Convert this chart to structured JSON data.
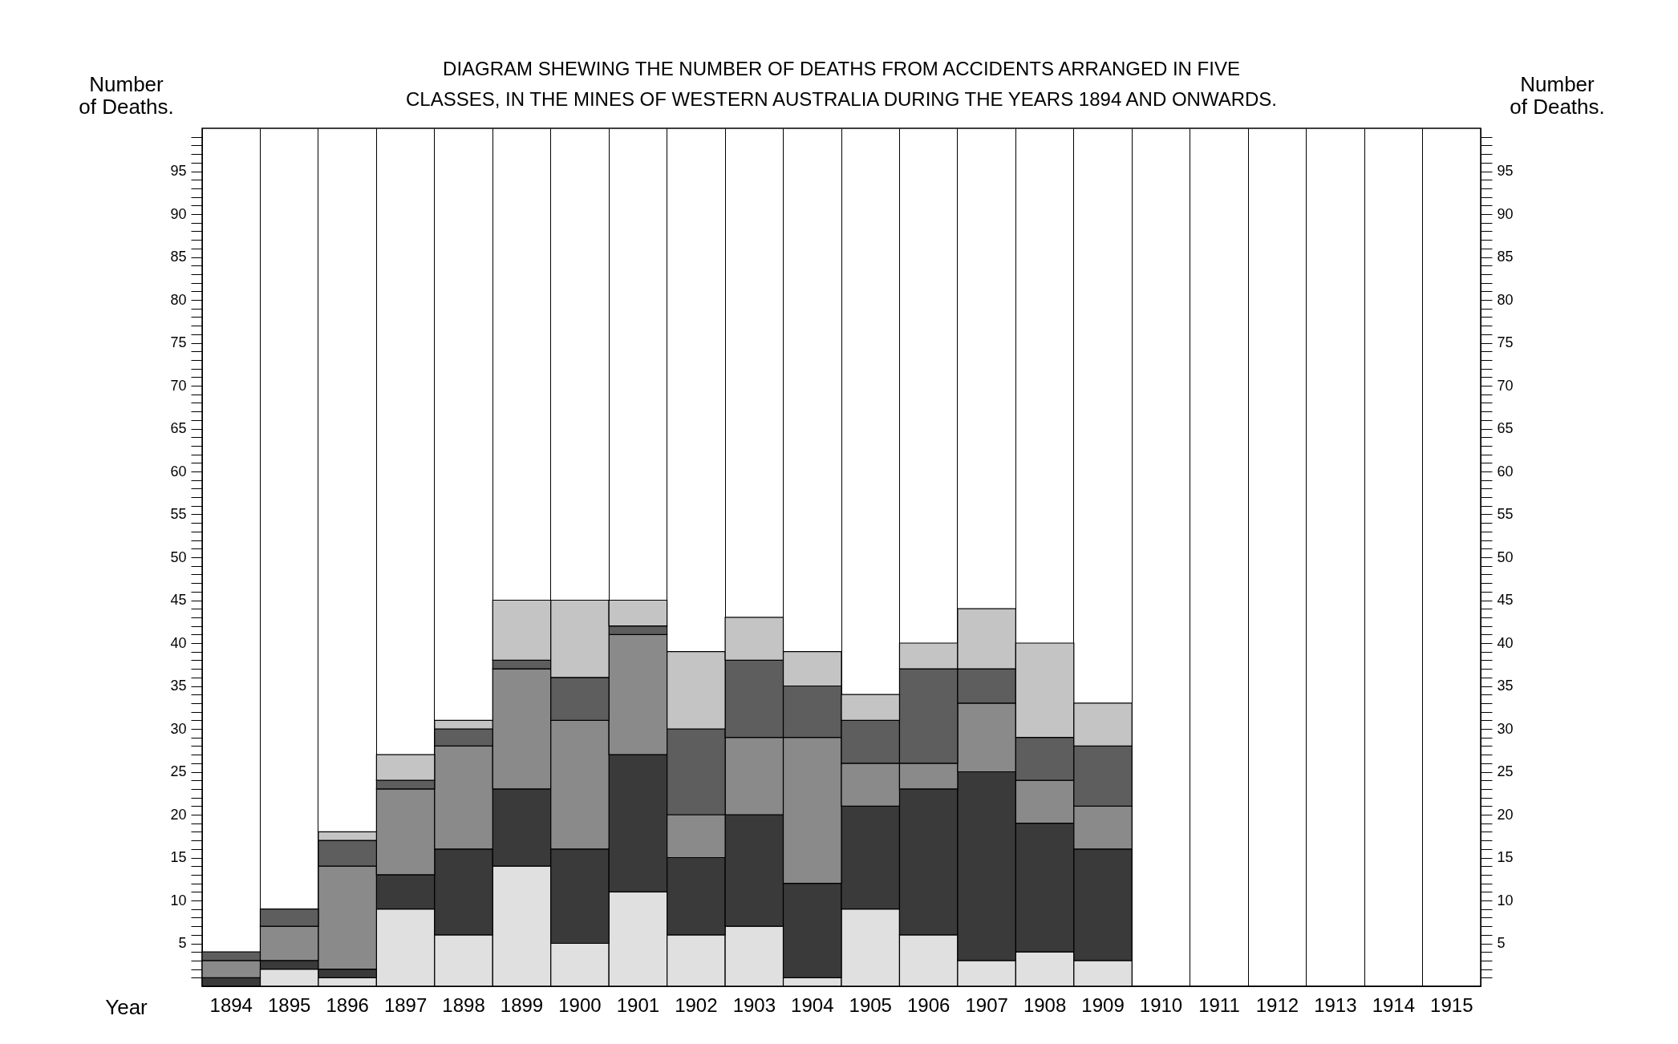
{
  "chart_data": {
    "type": "bar",
    "title": "DIAGRAM SHEWING THE NUMBER OF DEATHS FROM ACCIDENTS ARRANGED IN FIVE CLASSES, IN THE MINES OF WESTERN AUSTRALIA DURING THE YEARS 1894 AND ONWARDS.",
    "xlabel": "Year",
    "ylabel": "Number of Deaths.",
    "y2label": "Number of Deaths.",
    "stacked": true,
    "grid": "x",
    "categories": [
      "1894",
      "1895",
      "1896",
      "1897",
      "1898",
      "1899",
      "1900",
      "1901",
      "1902",
      "1903",
      "1904",
      "1905",
      "1906",
      "1907",
      "1908",
      "1909",
      "1910",
      "1911",
      "1912",
      "1913",
      "1914",
      "1915"
    ],
    "series": [
      {
        "color": "#e0e0e0",
        "values": [
          0,
          2,
          1,
          9,
          6,
          14,
          5,
          11,
          6,
          7,
          1,
          9,
          6,
          3,
          4,
          3,
          null,
          null,
          null,
          null,
          null,
          null
        ]
      },
      {
        "color": "#3a3a3a",
        "values": [
          1,
          1,
          1,
          4,
          10,
          9,
          11,
          16,
          9,
          13,
          11,
          12,
          17,
          22,
          15,
          13,
          null,
          null,
          null,
          null,
          null,
          null
        ]
      },
      {
        "color": "#8a8a8a",
        "values": [
          2,
          4,
          12,
          10,
          12,
          14,
          15,
          14,
          5,
          9,
          17,
          5,
          3,
          8,
          5,
          5,
          null,
          null,
          null,
          null,
          null,
          null
        ]
      },
      {
        "color": "#5e5e5e",
        "values": [
          1,
          2,
          3,
          1,
          2,
          1,
          5,
          1,
          10,
          9,
          6,
          5,
          11,
          4,
          5,
          7,
          null,
          null,
          null,
          null,
          null,
          null
        ]
      },
      {
        "color": "#c4c4c4",
        "values": [
          0,
          0,
          1,
          3,
          1,
          7,
          9,
          3,
          9,
          5,
          4,
          3,
          3,
          7,
          11,
          5,
          null,
          null,
          null,
          null,
          null,
          null
        ]
      }
    ],
    "ylim": [
      0,
      100
    ],
    "yticks": [
      {
        "value": 1,
        "label": null
      },
      {
        "value": 2,
        "label": null
      },
      {
        "value": 3,
        "label": null
      },
      {
        "value": 4,
        "label": null
      },
      5,
      {
        "value": 6,
        "label": null
      },
      {
        "value": 7,
        "label": null
      },
      {
        "value": 8,
        "label": null
      },
      {
        "value": 9,
        "label": null
      },
      10,
      {
        "value": 11,
        "label": null
      },
      {
        "value": 12,
        "label": null
      },
      {
        "value": 13,
        "label": null
      },
      {
        "value": 14,
        "label": null
      },
      15,
      {
        "value": 16,
        "label": null
      },
      {
        "value": 17,
        "label": null
      },
      {
        "value": 18,
        "label": null
      },
      {
        "value": 19,
        "label": null
      },
      20,
      {
        "value": 21,
        "label": null
      },
      {
        "value": 22,
        "label": null
      },
      {
        "value": 23,
        "label": null
      },
      {
        "value": 24,
        "label": null
      },
      25,
      {
        "value": 26,
        "label": null
      },
      {
        "value": 27,
        "label": null
      },
      {
        "value": 28,
        "label": null
      },
      {
        "value": 29,
        "label": null
      },
      30,
      {
        "value": 31,
        "label": null
      },
      {
        "value": 32,
        "label": null
      },
      {
        "value": 33,
        "label": null
      },
      {
        "value": 34,
        "label": null
      },
      35,
      {
        "value": 36,
        "label": null
      },
      {
        "value": 37,
        "label": null
      },
      {
        "value": 38,
        "label": null
      },
      {
        "value": 39,
        "label": null
      },
      40,
      {
        "value": 41,
        "label": null
      },
      {
        "value": 42,
        "label": null
      },
      {
        "value": 43,
        "label": null
      },
      {
        "value": 44,
        "label": null
      },
      45,
      {
        "value": 46,
        "label": null
      },
      {
        "value": 47,
        "label": null
      },
      {
        "value": 48,
        "label": null
      },
      {
        "value": 49,
        "label": null
      },
      50,
      {
        "value": 51,
        "label": null
      },
      {
        "value": 52,
        "label": null
      },
      {
        "value": 53,
        "label": null
      },
      {
        "value": 54,
        "label": null
      },
      55,
      {
        "value": 56,
        "label": null
      },
      {
        "value": 57,
        "label": null
      },
      {
        "value": 58,
        "label": null
      },
      {
        "value": 59,
        "label": null
      },
      60,
      {
        "value": 61,
        "label": null
      },
      {
        "value": 62,
        "label": null
      },
      {
        "value": 63,
        "label": null
      },
      {
        "value": 64,
        "label": null
      },
      65,
      {
        "value": 66,
        "label": null
      },
      {
        "value": 67,
        "label": null
      },
      {
        "value": 68,
        "label": null
      },
      {
        "value": 69,
        "label": null
      },
      70,
      {
        "value": 71,
        "label": null
      },
      {
        "value": 72,
        "label": null
      },
      {
        "value": 73,
        "label": null
      },
      {
        "value": 74,
        "label": null
      },
      75,
      {
        "value": 76,
        "label": null
      },
      {
        "value": 77,
        "label": null
      },
      {
        "value": 78,
        "label": null
      },
      {
        "value": 79,
        "label": null
      },
      80,
      {
        "value": 81,
        "label": null
      },
      {
        "value": 82,
        "label": null
      },
      {
        "value": 83,
        "label": null
      },
      {
        "value": 84,
        "label": null
      },
      85,
      {
        "value": 86,
        "label": null
      },
      {
        "value": 87,
        "label": null
      },
      {
        "value": 88,
        "label": null
      },
      {
        "value": 89,
        "label": null
      },
      90,
      {
        "value": 91,
        "label": null
      },
      {
        "value": 92,
        "label": null
      },
      {
        "value": 93,
        "label": null
      },
      {
        "value": 94,
        "label": null
      },
      95,
      {
        "value": 96,
        "label": null
      },
      {
        "value": 97,
        "label": null
      },
      {
        "value": 98,
        "label": null
      },
      {
        "value": 99,
        "label": null
      }
    ],
    "y2lim": [
      0,
      100
    ],
    "y2ticks": [
      {
        "value": 1,
        "label": null
      },
      {
        "value": 2,
        "label": null
      },
      {
        "value": 3,
        "label": null
      },
      {
        "value": 4,
        "label": null
      },
      5,
      {
        "value": 6,
        "label": null
      },
      {
        "value": 7,
        "label": null
      },
      {
        "value": 8,
        "label": null
      },
      {
        "value": 9,
        "label": null
      },
      10,
      {
        "value": 11,
        "label": null
      },
      {
        "value": 12,
        "label": null
      },
      {
        "value": 13,
        "label": null
      },
      {
        "value": 14,
        "label": null
      },
      15,
      {
        "value": 16,
        "label": null
      },
      {
        "value": 17,
        "label": null
      },
      {
        "value": 18,
        "label": null
      },
      {
        "value": 19,
        "label": null
      },
      20,
      {
        "value": 21,
        "label": null
      },
      {
        "value": 22,
        "label": null
      },
      {
        "value": 23,
        "label": null
      },
      {
        "value": 24,
        "label": null
      },
      25,
      {
        "value": 26,
        "label": null
      },
      {
        "value": 27,
        "label": null
      },
      {
        "value": 28,
        "label": null
      },
      {
        "value": 29,
        "label": null
      },
      30,
      {
        "value": 31,
        "label": null
      },
      {
        "value": 32,
        "label": null
      },
      {
        "value": 33,
        "label": null
      },
      {
        "value": 34,
        "label": null
      },
      35,
      {
        "value": 36,
        "label": null
      },
      {
        "value": 37,
        "label": null
      },
      {
        "value": 38,
        "label": null
      },
      {
        "value": 39,
        "label": null
      },
      40,
      {
        "value": 41,
        "label": null
      },
      {
        "value": 42,
        "label": null
      },
      {
        "value": 43,
        "label": null
      },
      {
        "value": 44,
        "label": null
      },
      45,
      {
        "value": 46,
        "label": null
      },
      {
        "value": 47,
        "label": null
      },
      {
        "value": 48,
        "label": null
      },
      {
        "value": 49,
        "label": null
      },
      50,
      {
        "value": 51,
        "label": null
      },
      {
        "value": 52,
        "label": null
      },
      {
        "value": 53,
        "label": null
      },
      {
        "value": 54,
        "label": null
      },
      55,
      {
        "value": 56,
        "label": null
      },
      {
        "value": 57,
        "label": null
      },
      {
        "value": 58,
        "label": null
      },
      {
        "value": 59,
        "label": null
      },
      60,
      {
        "value": 61,
        "label": null
      },
      {
        "value": 62,
        "label": null
      },
      {
        "value": 63,
        "label": null
      },
      {
        "value": 64,
        "label": null
      },
      65,
      {
        "value": 66,
        "label": null
      },
      {
        "value": 67,
        "label": null
      },
      {
        "value": 68,
        "label": null
      },
      {
        "value": 69,
        "label": null
      },
      70,
      {
        "value": 71,
        "label": null
      },
      {
        "value": 72,
        "label": null
      },
      {
        "value": 73,
        "label": null
      },
      {
        "value": 74,
        "label": null
      },
      75,
      {
        "value": 76,
        "label": null
      },
      {
        "value": 77,
        "label": null
      },
      {
        "value": 78,
        "label": null
      },
      {
        "value": 79,
        "label": null
      },
      80,
      {
        "value": 81,
        "label": null
      },
      {
        "value": 82,
        "label": null
      },
      {
        "value": 83,
        "label": null
      },
      {
        "value": 84,
        "label": null
      },
      85,
      {
        "value": 86,
        "label": null
      },
      {
        "value": 87,
        "label": null
      },
      {
        "value": 88,
        "label": null
      },
      {
        "value": 89,
        "label": null
      },
      90,
      {
        "value": 91,
        "label": null
      },
      {
        "value": 92,
        "label": null
      },
      {
        "value": 93,
        "label": null
      },
      {
        "value": 94,
        "label": null
      },
      95,
      {
        "value": 96,
        "label": null
      },
      {
        "value": 97,
        "label": null
      },
      {
        "value": 98,
        "label": null
      },
      {
        "value": 99,
        "label": null
      }
    ]
  }
}
